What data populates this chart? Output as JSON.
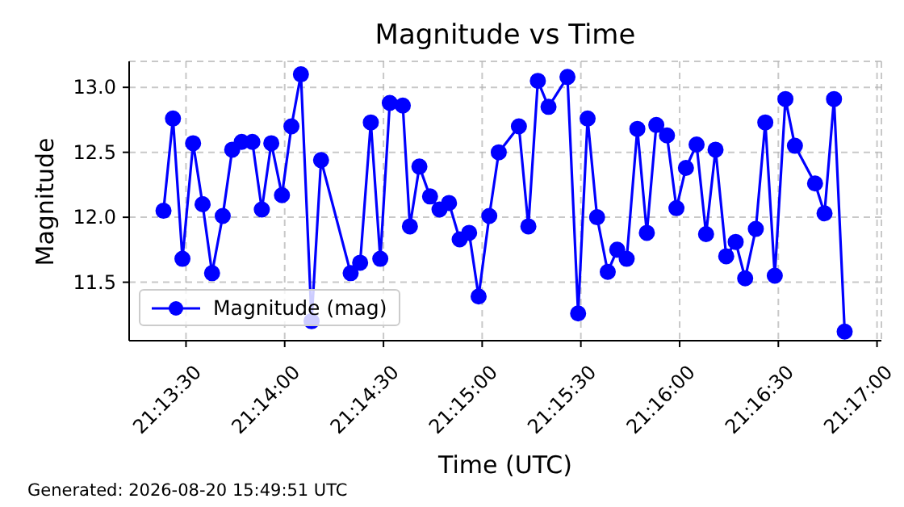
{
  "chart_data": {
    "type": "line",
    "title": "Magnitude vs Time",
    "xlabel": "Time (UTC)",
    "ylabel": "Magnitude",
    "annotations": [
      "Generated: 2026-08-20 15:49:51 UTC"
    ],
    "x": [
      21.2231,
      21.2239,
      21.2247,
      21.2256,
      21.2264,
      21.2272,
      21.2281,
      21.2289,
      21.2297,
      21.2306,
      21.2314,
      21.2322,
      21.2331,
      21.2339,
      21.2347,
      21.2356,
      21.2364,
      21.2389,
      21.2397,
      21.2406,
      21.2414,
      21.2422,
      21.2433,
      21.2439,
      21.2447,
      21.2456,
      21.2464,
      21.2472,
      21.2481,
      21.2489,
      21.2497,
      21.2506,
      21.2514,
      21.2531,
      21.2539,
      21.2547,
      21.2556,
      21.2572,
      21.2581,
      21.2589,
      21.2597,
      21.2606,
      21.2614,
      21.2622,
      21.2631,
      21.2639,
      21.2647,
      21.2656,
      21.2664,
      21.2672,
      21.2681,
      21.2689,
      21.2697,
      21.2706,
      21.2714,
      21.2722,
      21.2731,
      21.2739,
      21.2747,
      21.2756,
      21.2764,
      21.2781,
      21.2789,
      21.2797,
      21.2806
    ],
    "series": [
      {
        "name": "Magnitude (mag)",
        "color": "#0000ff",
        "values": [
          12.05,
          12.76,
          11.68,
          12.57,
          12.1,
          11.57,
          12.01,
          12.52,
          12.58,
          12.58,
          12.06,
          12.57,
          12.17,
          12.7,
          13.1,
          11.2,
          12.44,
          11.57,
          11.65,
          12.73,
          11.68,
          12.88,
          12.86,
          11.93,
          12.39,
          12.16,
          12.06,
          12.11,
          11.83,
          11.88,
          11.39,
          12.01,
          12.5,
          12.7,
          11.93,
          13.05,
          12.85,
          13.08,
          11.26,
          12.76,
          12.0,
          11.58,
          11.75,
          11.68,
          12.68,
          11.88,
          12.71,
          12.63,
          12.07,
          12.38,
          12.56,
          11.87,
          12.52,
          11.7,
          11.81,
          11.53,
          11.91,
          12.73,
          11.55,
          12.91,
          12.55,
          12.26,
          12.03,
          12.91,
          11.12
        ]
      }
    ],
    "xlim": [
      21.2202,
      21.2837
    ],
    "xticks": [
      {
        "value": 21.225,
        "label": "21:13:30"
      },
      {
        "value": 21.23333,
        "label": "21:14:00"
      },
      {
        "value": 21.24167,
        "label": "21:14:30"
      },
      {
        "value": 21.25,
        "label": "21:15:00"
      },
      {
        "value": 21.25833,
        "label": "21:15:30"
      },
      {
        "value": 21.26667,
        "label": "21:16:00"
      },
      {
        "value": 21.275,
        "label": "21:16:30"
      },
      {
        "value": 21.28333,
        "label": "21:17:00"
      }
    ],
    "ylim": [
      11.05,
      13.2
    ],
    "yticks": [
      11.5,
      {
        "value": 12,
        "label": "12.0"
      },
      12.5,
      {
        "value": 13,
        "label": "13.0"
      }
    ],
    "grid": true,
    "legend": "bottom left",
    "marker": "circle",
    "line_style": "solid"
  }
}
